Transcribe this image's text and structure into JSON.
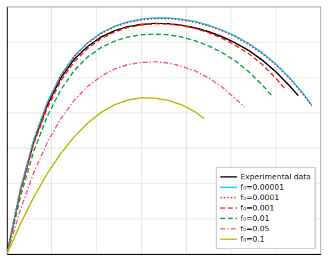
{
  "chart_data": {
    "type": "line",
    "series": [
      {
        "name": "Experimental data",
        "color": "#000000",
        "line_style": "solid",
        "x": [
          0.0,
          0.06,
          0.12,
          0.18,
          0.24,
          0.3,
          0.36,
          0.42,
          0.48,
          0.54,
          0.6,
          0.66,
          0.72,
          0.78,
          0.84,
          0.9,
          0.96,
          1.02,
          1.08,
          1.14,
          1.2,
          1.26,
          1.3
        ],
        "values": [
          0.0,
          200,
          355,
          470,
          555,
          615,
          655,
          685,
          705,
          718,
          725,
          728,
          727,
          722,
          714,
          702,
          686,
          666,
          642,
          612,
          575,
          532,
          500
        ]
      },
      {
        "name": "f₀=0.00001",
        "color": "#00ccff",
        "line_style": "solid",
        "x": [
          0.0,
          0.06,
          0.12,
          0.18,
          0.24,
          0.3,
          0.36,
          0.42,
          0.48,
          0.54,
          0.6,
          0.66,
          0.72,
          0.78,
          0.84,
          0.9,
          0.96,
          1.02,
          1.08,
          1.14,
          1.2,
          1.26,
          1.32,
          1.36
        ],
        "values": [
          0.0,
          205,
          362,
          478,
          564,
          625,
          667,
          698,
          719,
          733,
          741,
          745,
          745,
          741,
          734,
          722,
          707,
          688,
          664,
          635,
          600,
          558,
          508,
          470
        ]
      },
      {
        "name": "f₀=0.0001",
        "color": "#ff2020",
        "line_style": "dotted",
        "x": [
          0.0,
          0.06,
          0.12,
          0.18,
          0.24,
          0.3,
          0.36,
          0.42,
          0.48,
          0.54,
          0.6,
          0.66,
          0.72,
          0.78,
          0.84,
          0.9,
          0.96,
          1.02,
          1.08,
          1.14,
          1.2,
          1.26,
          1.32,
          1.36
        ],
        "values": [
          0.0,
          203,
          360,
          476,
          562,
          623,
          665,
          696,
          717,
          731,
          739,
          743,
          743,
          739,
          731,
          720,
          705,
          685,
          661,
          632,
          597,
          555,
          505,
          468
        ]
      },
      {
        "name": "f₀=0.001",
        "color": "#ff2020",
        "line_style": "dashed",
        "x": [
          0.0,
          0.06,
          0.12,
          0.18,
          0.24,
          0.3,
          0.36,
          0.42,
          0.48,
          0.54,
          0.6,
          0.66,
          0.72,
          0.78,
          0.84,
          0.9,
          0.96,
          1.02,
          1.08,
          1.14,
          1.2,
          1.24
        ],
        "values": [
          0.0,
          195,
          348,
          461,
          546,
          607,
          649,
          680,
          701,
          715,
          723,
          727,
          726,
          721,
          712,
          699,
          681,
          659,
          632,
          598,
          555,
          522
        ]
      },
      {
        "name": "f₀=0.01",
        "color": "#00aa44",
        "line_style": "dashed",
        "x": [
          0.0,
          0.06,
          0.12,
          0.18,
          0.24,
          0.3,
          0.36,
          0.42,
          0.48,
          0.54,
          0.6,
          0.66,
          0.72,
          0.78,
          0.84,
          0.9,
          0.96,
          1.02,
          1.08,
          1.14,
          1.18
        ],
        "values": [
          0.0,
          180,
          325,
          435,
          518,
          579,
          622,
          652,
          672,
          685,
          692,
          694,
          692,
          685,
          673,
          657,
          636,
          609,
          575,
          533,
          502
        ]
      },
      {
        "name": "f₀=0.05",
        "color": "#ff5588",
        "line_style": "dashdot",
        "x": [
          0.0,
          0.06,
          0.12,
          0.18,
          0.24,
          0.3,
          0.36,
          0.42,
          0.48,
          0.54,
          0.6,
          0.66,
          0.72,
          0.78,
          0.84,
          0.9,
          0.96,
          1.02,
          1.06
        ],
        "values": [
          0.0,
          140,
          258,
          352,
          427,
          485,
          529,
          561,
          584,
          598,
          605,
          607,
          603,
          593,
          578,
          556,
          527,
          490,
          464
        ]
      },
      {
        "name": "f₀=0.1",
        "color": "#bbbb00",
        "line_style": "solid",
        "x": [
          0.0,
          0.06,
          0.12,
          0.18,
          0.24,
          0.3,
          0.36,
          0.42,
          0.48,
          0.54,
          0.6,
          0.66,
          0.72,
          0.78,
          0.84,
          0.88
        ],
        "values": [
          0.0,
          95,
          180,
          254,
          317,
          370,
          413,
          447,
          471,
          486,
          493,
          492,
          485,
          471,
          449,
          428
        ]
      }
    ],
    "xlim": [
      0.0,
      1.4
    ],
    "xticks": [
      0,
      0.2,
      0.4,
      0.6,
      0.8,
      1.0,
      1.2,
      1.4
    ],
    "ylim": [
      0,
      780
    ],
    "yticks": [
      0,
      111.42857142857143,
      222.85714285714286,
      334.2857142857143,
      445.7142857142857,
      557.1428571428571,
      668.5714285714286,
      780
    ],
    "grid": true,
    "legend": "lower right",
    "tick_labels": false
  }
}
